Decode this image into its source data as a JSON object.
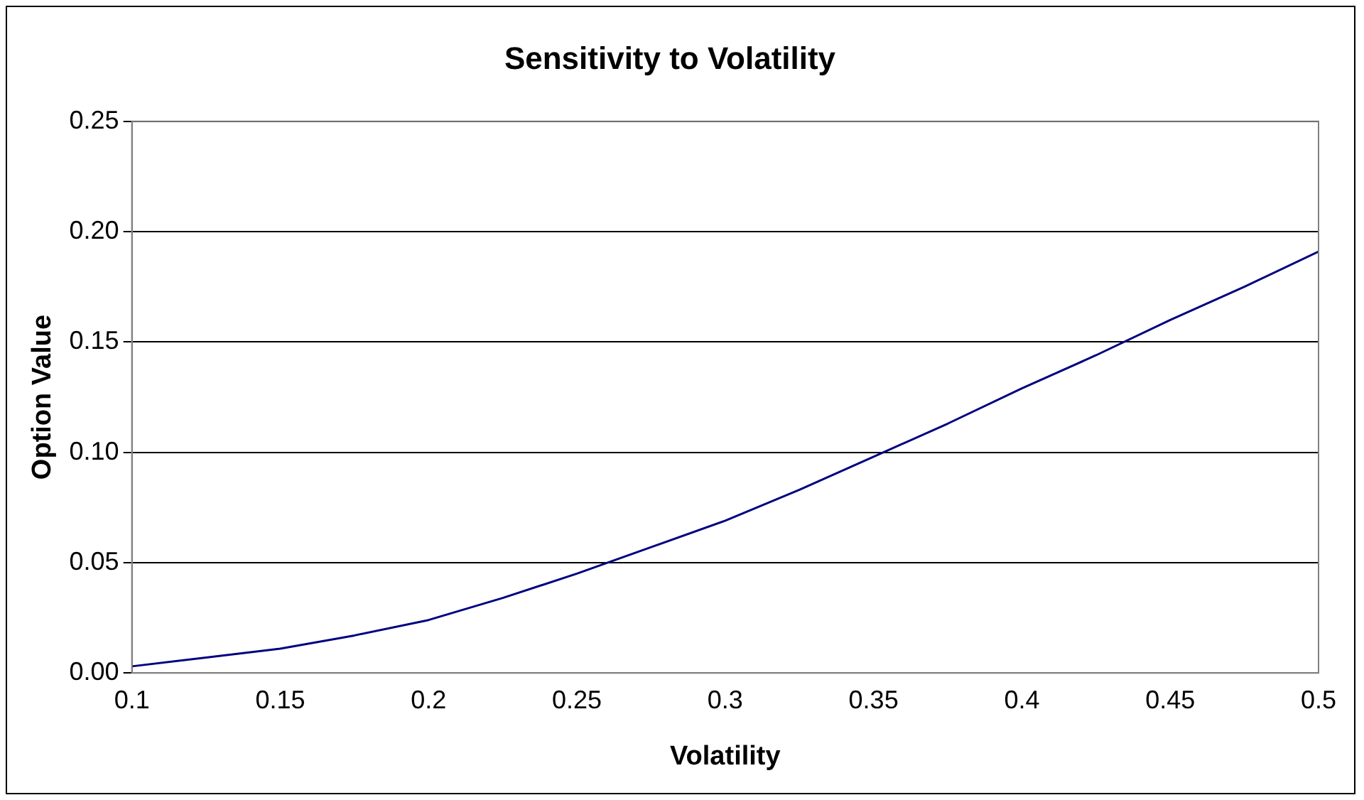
{
  "chart_data": {
    "type": "line",
    "title": "Sensitivity to Volatility",
    "xlabel": "Volatility",
    "ylabel": "Option Value",
    "x": [
      0.1,
      0.125,
      0.15,
      0.175,
      0.2,
      0.225,
      0.25,
      0.275,
      0.3,
      0.325,
      0.35,
      0.375,
      0.4,
      0.425,
      0.45,
      0.475,
      0.5
    ],
    "series": [
      {
        "color": "#000080",
        "values": [
          0.003,
          0.007,
          0.011,
          0.017,
          0.024,
          0.034,
          0.045,
          0.057,
          0.069,
          0.083,
          0.098,
          0.113,
          0.129,
          0.144,
          0.16,
          0.175,
          0.191
        ]
      }
    ],
    "xlim": [
      0.1,
      0.5
    ],
    "xticks": [
      0.1,
      0.15,
      0.2,
      0.25,
      0.3,
      0.35,
      0.4,
      0.45,
      0.5
    ],
    "ylim": [
      0,
      0.25
    ],
    "yticks": [
      {
        "value": 0,
        "label": "0.00"
      },
      {
        "value": 0.05,
        "label": "0.05"
      },
      {
        "value": 0.1,
        "label": "0.10"
      },
      {
        "value": 0.15,
        "label": "0.15"
      },
      {
        "value": 0.2,
        "label": "0.20"
      },
      {
        "value": 0.25,
        "label": "0.25"
      }
    ],
    "grid": "y",
    "legend": false,
    "marker": "none",
    "line_style": "solid"
  }
}
